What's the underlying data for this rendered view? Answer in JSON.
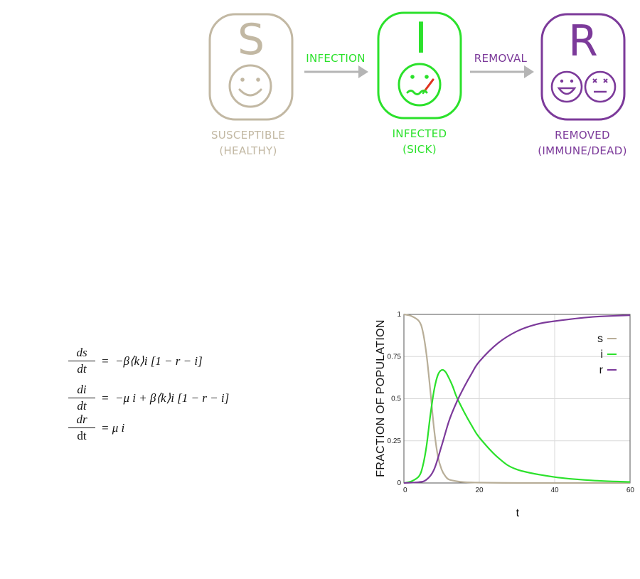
{
  "diagram": {
    "states": [
      {
        "letter": "S",
        "label_line1": "SUSCEPTIBLE",
        "label_line2": "(HEALTHY)",
        "color": "#C2B8A3"
      },
      {
        "letter": "I",
        "label_line1": "INFECTED",
        "label_line2": "(SICK)",
        "color": "#2BE12B"
      },
      {
        "letter": "R",
        "label_line1": "REMOVED",
        "label_line2": "(IMMUNE/DEAD)",
        "color": "#7C3A9A"
      }
    ],
    "transitions": [
      {
        "label": "INFECTION",
        "color": "#2BE12B"
      },
      {
        "label": "REMOVAL",
        "color": "#7C3A9A"
      }
    ],
    "arrow_color": "#B5B5B5"
  },
  "equations": {
    "eq1": {
      "num": "ds",
      "den": "dt",
      "rhs": "=  −β⟨k⟩i [1 − r − i]"
    },
    "eq2": {
      "num": "di",
      "den": "dt",
      "rhs": "=  −μ i + β⟨k⟩i [1 − r − i]"
    },
    "eq3": {
      "num": "dr",
      "den": "dt",
      "rhs": "= μ i"
    }
  },
  "chart_data": {
    "type": "line",
    "xlabel": "t",
    "ylabel": "FRACTION OF POPULATION",
    "xlim": [
      0,
      60
    ],
    "ylim": [
      0,
      1
    ],
    "xticks": [
      "0",
      "20",
      "40",
      "60"
    ],
    "yticks": [
      "0",
      "0.25",
      "0.5",
      "0.75",
      "1"
    ],
    "legend_position": "top-right",
    "series": [
      {
        "name": "s",
        "color": "#B8AE98",
        "x": [
          0,
          2,
          4,
          5,
          6,
          7,
          8,
          9,
          10,
          11,
          12,
          14,
          16,
          20,
          30,
          40,
          60
        ],
        "y": [
          1.0,
          0.99,
          0.96,
          0.9,
          0.76,
          0.55,
          0.32,
          0.16,
          0.08,
          0.04,
          0.02,
          0.01,
          0.005,
          0.002,
          0.0,
          0.0,
          0.0
        ]
      },
      {
        "name": "i",
        "color": "#2BE12B",
        "x": [
          0,
          2,
          4,
          5,
          6,
          7,
          8,
          9,
          10,
          11,
          12,
          13,
          14,
          16,
          18,
          20,
          25,
          30,
          40,
          50,
          60
        ],
        "y": [
          0.0,
          0.01,
          0.04,
          0.1,
          0.22,
          0.4,
          0.55,
          0.64,
          0.67,
          0.66,
          0.62,
          0.57,
          0.51,
          0.42,
          0.34,
          0.27,
          0.15,
          0.08,
          0.035,
          0.015,
          0.006
        ]
      },
      {
        "name": "r",
        "color": "#7C3A9A",
        "x": [
          0,
          4,
          6,
          8,
          10,
          12,
          14,
          16,
          18,
          20,
          25,
          30,
          35,
          40,
          50,
          60
        ],
        "y": [
          0.0,
          0.005,
          0.02,
          0.08,
          0.22,
          0.37,
          0.48,
          0.57,
          0.65,
          0.72,
          0.83,
          0.9,
          0.94,
          0.96,
          0.985,
          0.995
        ]
      }
    ]
  }
}
